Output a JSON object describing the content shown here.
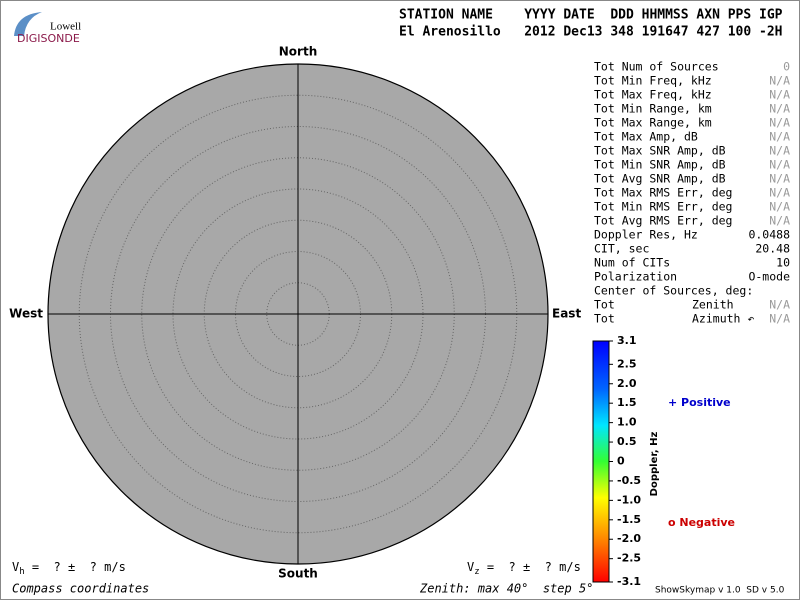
{
  "logo": {
    "top": "Lowell",
    "bottom": "DIGISONDE"
  },
  "header": {
    "labels": "STATION NAME    YYYY DATE  DDD HHMMSS AXN PPS IGP",
    "values": "El Arenosillo   2012 Dec13 348 191647 427 100 -2H"
  },
  "skymap": {
    "north": "North",
    "south": "South",
    "east": "East",
    "west": "West"
  },
  "stats": {
    "rows": [
      {
        "label": "Tot Num of Sources",
        "value": "0",
        "value_color": "#9a9a9a"
      },
      {
        "label": "Tot Min Freq, kHz",
        "value": "N/A",
        "value_color": "#9a9a9a"
      },
      {
        "label": "Tot Max Freq, kHz",
        "value": "N/A",
        "value_color": "#9a9a9a"
      },
      {
        "label": "Tot Min Range, km",
        "value": "N/A",
        "value_color": "#9a9a9a"
      },
      {
        "label": "Tot Max Range, km",
        "value": "N/A",
        "value_color": "#9a9a9a"
      },
      {
        "label": "Tot Max Amp, dB",
        "value": "N/A",
        "value_color": "#9a9a9a"
      },
      {
        "label": "Tot Max SNR Amp, dB",
        "value": "N/A",
        "value_color": "#9a9a9a"
      },
      {
        "label": "Tot Min SNR Amp, dB",
        "value": "N/A",
        "value_color": "#9a9a9a"
      },
      {
        "label": "Tot Avg SNR Amp, dB",
        "value": "N/A",
        "value_color": "#9a9a9a"
      },
      {
        "label": "Tot Max RMS Err, deg",
        "value": "N/A",
        "value_color": "#9a9a9a"
      },
      {
        "label": "Tot Min RMS Err, deg",
        "value": "N/A",
        "value_color": "#9a9a9a"
      },
      {
        "label": "Tot Avg RMS Err, deg",
        "value": "N/A",
        "value_color": "#9a9a9a"
      },
      {
        "label": "Doppler Res, Hz",
        "value": "0.0488"
      },
      {
        "label": "CIT, sec",
        "value": "20.48"
      },
      {
        "label": "Num of CITs",
        "value": "10"
      },
      {
        "label": "Polarization",
        "value": "O-mode"
      },
      {
        "label": "Center of Sources, deg:"
      },
      {
        "label": "Tot",
        "sub": "Zenith",
        "value": "N/A",
        "value_color": "#9a9a9a"
      },
      {
        "label": "Tot",
        "sub": "Azimuth ↶",
        "value": "N/A",
        "value_color": "#9a9a9a"
      }
    ]
  },
  "colorbar": {
    "title": "Doppler, Hz",
    "ticks": [
      3.1,
      2.5,
      {
        "value": 2,
        "label": "2.0"
      },
      1.5,
      {
        "value": 1,
        "label": "1.0"
      },
      0.5,
      0,
      -0.5,
      {
        "value": -1,
        "label": "-1.0"
      },
      -1.5,
      {
        "value": -2,
        "label": "-2.0"
      },
      -2.5,
      -3.1
    ]
  },
  "legend": {
    "positive": "+ Positive",
    "negative": "o Negative"
  },
  "footer": {
    "vh": {
      "symbol": "V",
      "sub": "h",
      "text": " =  ? ±  ? m/s"
    },
    "vz": {
      "symbol": "V",
      "sub": "z",
      "text": " =  ? ±  ? m/s"
    },
    "coords": "Compass coordinates",
    "zenith": "Zenith: max 40°  step 5°",
    "version": "ShowSkymap v 1.0  SD v 5.0"
  }
}
